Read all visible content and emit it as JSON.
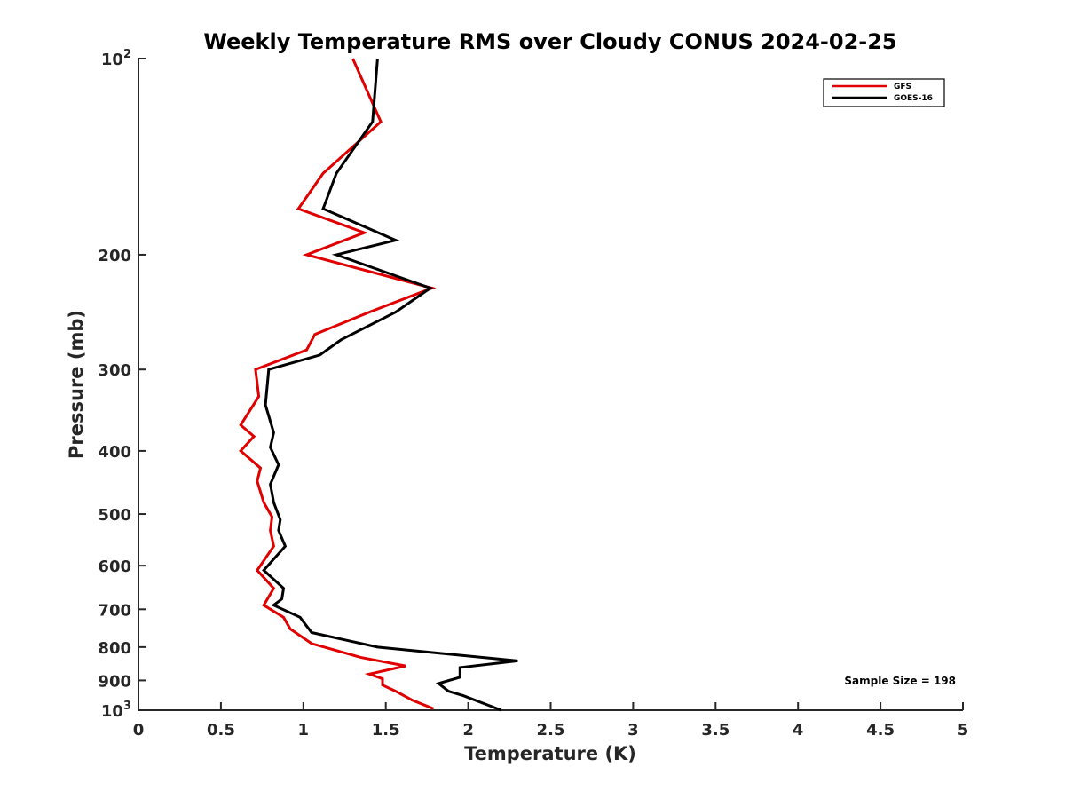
{
  "chart_data": {
    "type": "line",
    "title": "Weekly Temperature RMS over Cloudy CONUS 2024-02-25",
    "xlabel": "Temperature (K)",
    "ylabel": "Pressure (mb)",
    "xlim": [
      0,
      5
    ],
    "ylim": [
      1000,
      100
    ],
    "y_scale": "log",
    "y_reversed": true,
    "grid": false,
    "legend_position": "top-right",
    "x_ticks": [
      "0",
      "0.5",
      "1",
      "1.5",
      "2",
      "2.5",
      "3",
      "3.5",
      "4",
      "4.5",
      "5"
    ],
    "y_ticks": [
      {
        "value": 100,
        "label": "10",
        "sup": "2"
      },
      {
        "value": 200,
        "label": "200",
        "sup": ""
      },
      {
        "value": 300,
        "label": "300",
        "sup": ""
      },
      {
        "value": 400,
        "label": "400",
        "sup": ""
      },
      {
        "value": 500,
        "label": "500",
        "sup": ""
      },
      {
        "value": 600,
        "label": "600",
        "sup": ""
      },
      {
        "value": 700,
        "label": "700",
        "sup": ""
      },
      {
        "value": 800,
        "label": "800",
        "sup": ""
      },
      {
        "value": 900,
        "label": "900",
        "sup": ""
      },
      {
        "value": 1000,
        "label": "10",
        "sup": "3"
      }
    ],
    "annotation": "Sample Size = 198",
    "series": [
      {
        "name": "GFS",
        "color": "#e00000",
        "points": [
          [
            1.3,
            100
          ],
          [
            1.47,
            125
          ],
          [
            1.12,
            150
          ],
          [
            0.97,
            170
          ],
          [
            1.37,
            185
          ],
          [
            1.02,
            200
          ],
          [
            1.78,
            225
          ],
          [
            1.4,
            245
          ],
          [
            1.07,
            265
          ],
          [
            1.02,
            280
          ],
          [
            0.71,
            300
          ],
          [
            0.73,
            330
          ],
          [
            0.62,
            365
          ],
          [
            0.7,
            380
          ],
          [
            0.62,
            400
          ],
          [
            0.74,
            425
          ],
          [
            0.72,
            445
          ],
          [
            0.76,
            480
          ],
          [
            0.81,
            505
          ],
          [
            0.8,
            530
          ],
          [
            0.82,
            560
          ],
          [
            0.72,
            610
          ],
          [
            0.82,
            650
          ],
          [
            0.76,
            690
          ],
          [
            0.88,
            720
          ],
          [
            0.92,
            750
          ],
          [
            1.05,
            790
          ],
          [
            1.35,
            830
          ],
          [
            1.62,
            855
          ],
          [
            1.4,
            880
          ],
          [
            1.48,
            895
          ],
          [
            1.48,
            915
          ],
          [
            1.56,
            935
          ],
          [
            1.66,
            965
          ],
          [
            1.79,
            995
          ]
        ]
      },
      {
        "name": "GOES-16",
        "color": "#000000",
        "points": [
          [
            1.45,
            100
          ],
          [
            1.42,
            125
          ],
          [
            1.2,
            150
          ],
          [
            1.12,
            170
          ],
          [
            1.56,
            190
          ],
          [
            1.2,
            200
          ],
          [
            1.77,
            225
          ],
          [
            1.56,
            245
          ],
          [
            1.23,
            270
          ],
          [
            1.1,
            285
          ],
          [
            0.79,
            300
          ],
          [
            0.77,
            340
          ],
          [
            0.82,
            375
          ],
          [
            0.8,
            395
          ],
          [
            0.85,
            420
          ],
          [
            0.8,
            450
          ],
          [
            0.82,
            480
          ],
          [
            0.86,
            510
          ],
          [
            0.85,
            530
          ],
          [
            0.89,
            560
          ],
          [
            0.76,
            610
          ],
          [
            0.88,
            650
          ],
          [
            0.87,
            675
          ],
          [
            0.82,
            690
          ],
          [
            0.98,
            720
          ],
          [
            1.05,
            760
          ],
          [
            1.45,
            800
          ],
          [
            2.3,
            840
          ],
          [
            1.95,
            860
          ],
          [
            1.95,
            890
          ],
          [
            1.82,
            910
          ],
          [
            1.88,
            935
          ],
          [
            1.97,
            950
          ],
          [
            2.2,
            1000
          ]
        ]
      }
    ]
  }
}
